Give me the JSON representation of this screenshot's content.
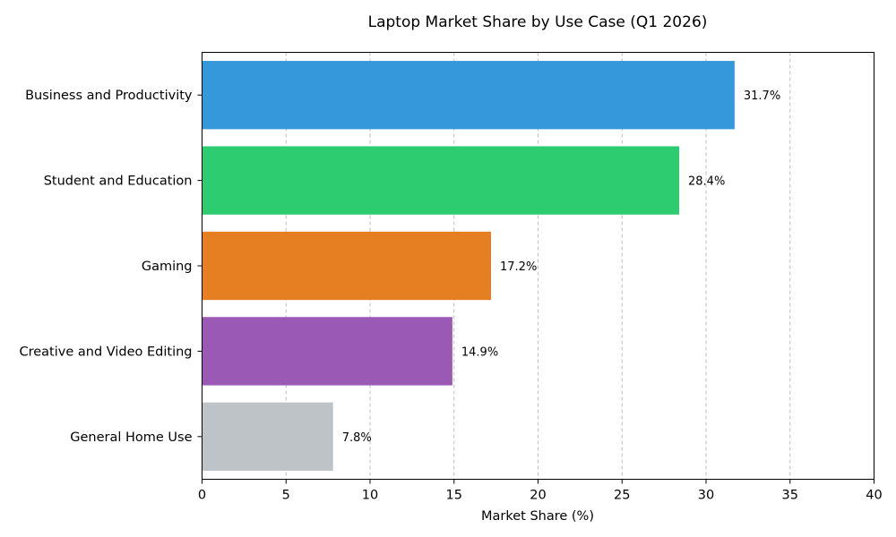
{
  "chart_data": {
    "type": "bar",
    "orientation": "horizontal",
    "title": "Laptop Market Share by Use Case (Q1 2026)",
    "xlabel": "Market Share (%)",
    "ylabel": "",
    "categories": [
      "Business and Productivity",
      "Student and Education",
      "Gaming",
      "Creative and Video Editing",
      "General Home Use"
    ],
    "values": [
      31.7,
      28.4,
      17.2,
      14.9,
      7.8
    ],
    "value_labels": [
      "31.7%",
      "28.4%",
      "17.2%",
      "14.9%",
      "7.8%"
    ],
    "colors": [
      "#3498db",
      "#2ecc71",
      "#e67e22",
      "#9b59b6",
      "#bdc3c7"
    ],
    "xlim": [
      0,
      40
    ],
    "xticks": [
      0,
      5,
      10,
      15,
      20,
      25,
      30,
      35,
      40
    ],
    "grid": "x-dashed",
    "legend": "none"
  }
}
